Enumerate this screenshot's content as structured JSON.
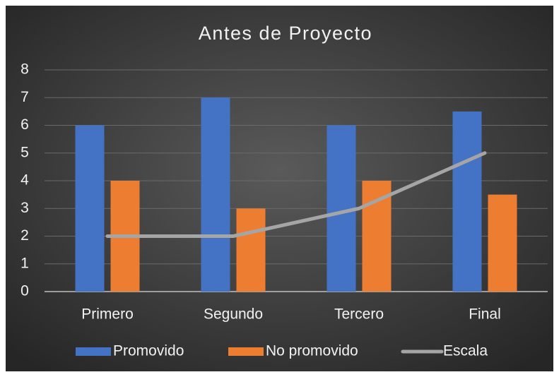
{
  "chart_data": {
    "type": "bar",
    "title": "Antes de Proyecto",
    "categories": [
      "Primero",
      "Segundo",
      "Tercero",
      "Final"
    ],
    "series": [
      {
        "name": "Promovido",
        "color": "#4472c4",
        "values": [
          6,
          7,
          6,
          6.5
        ]
      },
      {
        "name": "No promovido",
        "color": "#ed7d31",
        "values": [
          4,
          3,
          4,
          3.5
        ]
      },
      {
        "name": "Escala",
        "type": "line",
        "color": "#a5a5a5",
        "values": [
          2,
          2,
          3,
          5
        ]
      }
    ],
    "ylim": [
      0,
      8
    ],
    "yticks": [
      0,
      1,
      2,
      3,
      4,
      5,
      6,
      7,
      8
    ],
    "grid": true,
    "legend": "bottom"
  }
}
